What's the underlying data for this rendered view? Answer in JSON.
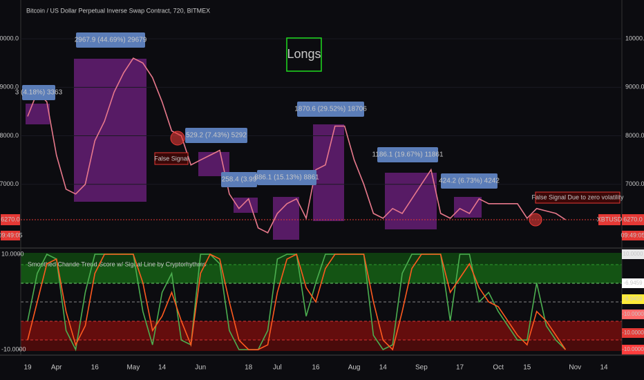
{
  "chart_data": [
    {
      "type": "line",
      "title": "Bitcoin / US Dollar Perpetual Inverse Swap Contract, 720, BITMEX",
      "categories": [
        "19",
        null,
        null,
        "Apr",
        null,
        null,
        null,
        "16",
        null,
        null,
        null,
        "May",
        null,
        null,
        "14",
        null,
        null,
        null,
        "Jun",
        null,
        null,
        null,
        null,
        "18",
        null,
        null,
        "Jul",
        null,
        null,
        null,
        "16",
        null,
        null,
        null,
        "Aug",
        null,
        null,
        "14",
        null,
        null,
        null,
        "Sep",
        null,
        null,
        null,
        "17",
        null,
        null,
        null,
        "Oct",
        null,
        null,
        "15",
        null,
        null,
        null,
        null,
        "Nov",
        null,
        null,
        "14"
      ],
      "series": [
        {
          "name": "XBTUSD",
          "color": "#e8798c",
          "values": [
            8400,
            8900,
            8700,
            7600,
            6900,
            6800,
            7000,
            7900,
            8300,
            8900,
            9300,
            9600,
            9500,
            9200,
            8700,
            8100,
            8000,
            7400,
            7500,
            7600,
            7700,
            6800,
            6500,
            6700,
            6100,
            6000,
            6400,
            6600,
            6700,
            6300,
            7300,
            7400,
            8200,
            8200,
            7500,
            7000,
            6400,
            6300,
            6500,
            6400,
            6700,
            7000,
            7300,
            6400,
            6300,
            6500,
            6400,
            6700,
            6600,
            6600,
            6600,
            6600,
            6300,
            6500,
            6450,
            6400,
            6270,
            null,
            null,
            null,
            null
          ]
        }
      ],
      "ylim": [
        5700,
        10800
      ],
      "yticks": [
        {
          "value": 7000,
          "label": "7000.0"
        },
        {
          "value": 8000,
          "label": "8000.0"
        },
        {
          "value": 9000,
          "label": "9000.0"
        },
        {
          "value": 10000,
          "label": "10000.0"
        }
      ],
      "last_price": {
        "value": 6270,
        "label": "6270.0"
      },
      "countdown": "09:49:05",
      "annotations": [
        "3 (4.18%) 3363",
        "2967.9 (44.69%) 29679",
        "529.2 (7.43%) 5292",
        "258.4 (3.99",
        "886.1 (15.13%) 8861",
        "1870.6 (29.52%) 18706",
        "1186.1 (19.67%) 11861",
        "424.2 (6.73%) 4242"
      ],
      "signal_notes": [
        "Longs",
        "False Signal",
        "False Signal Due to zero volatility"
      ]
    },
    {
      "type": "line",
      "title": "Smoothed Chande Trend Score w/ Signal Line by Cryptorhythms",
      "series": [
        {
          "color": "#4caf50",
          "values": [
            -4,
            6,
            10,
            9,
            -6,
            -10,
            2,
            10,
            10,
            10,
            10,
            10,
            -2,
            -9,
            2,
            6,
            -8,
            -9,
            10,
            10,
            8,
            -6,
            -10,
            -10,
            -10,
            -6,
            9,
            10,
            10,
            -3,
            4,
            10,
            10,
            10,
            10,
            10,
            -7,
            -10,
            -9,
            6,
            10,
            10,
            10,
            10,
            -4,
            10,
            10,
            0,
            2,
            -2,
            -5,
            -8,
            -8,
            4,
            -5,
            -8,
            -10,
            null,
            null,
            null,
            null
          ]
        },
        {
          "color": "#ff5a1f",
          "values": [
            -8,
            0,
            8,
            9,
            -2,
            -9,
            -5,
            6,
            10,
            10,
            10,
            10,
            4,
            -6,
            -3,
            2,
            -4,
            -9,
            6,
            10,
            9,
            0,
            -8,
            -10,
            -10,
            -9,
            2,
            9,
            10,
            3,
            0,
            7,
            10,
            10,
            10,
            10,
            0,
            -8,
            -10,
            -2,
            7,
            10,
            10,
            10,
            2,
            5,
            8,
            3,
            0,
            -1,
            -4,
            -7,
            -9,
            -2,
            -4,
            -7,
            -10,
            null,
            null,
            null,
            null
          ]
        }
      ],
      "ylim": [
        -11.16,
        11.16
      ],
      "yticks": [
        {
          "value": -10,
          "label": "-10.0000"
        },
        {
          "value": 10,
          "label": "10.0000"
        }
      ],
      "value_tags": [
        {
          "label": "10.0000",
          "color": "#e8e8e8"
        },
        {
          "label": "-6.9459",
          "color": "#ffffff"
        },
        {
          "label": "-6.9459",
          "color": "#ffeb3b"
        },
        {
          "label": "-10.0000",
          "color": "#ff6b6b"
        },
        {
          "label": "-10.0000",
          "color": "#e53935"
        },
        {
          "label": "-10.0000",
          "color": "#ff3d3d"
        }
      ]
    }
  ]
}
